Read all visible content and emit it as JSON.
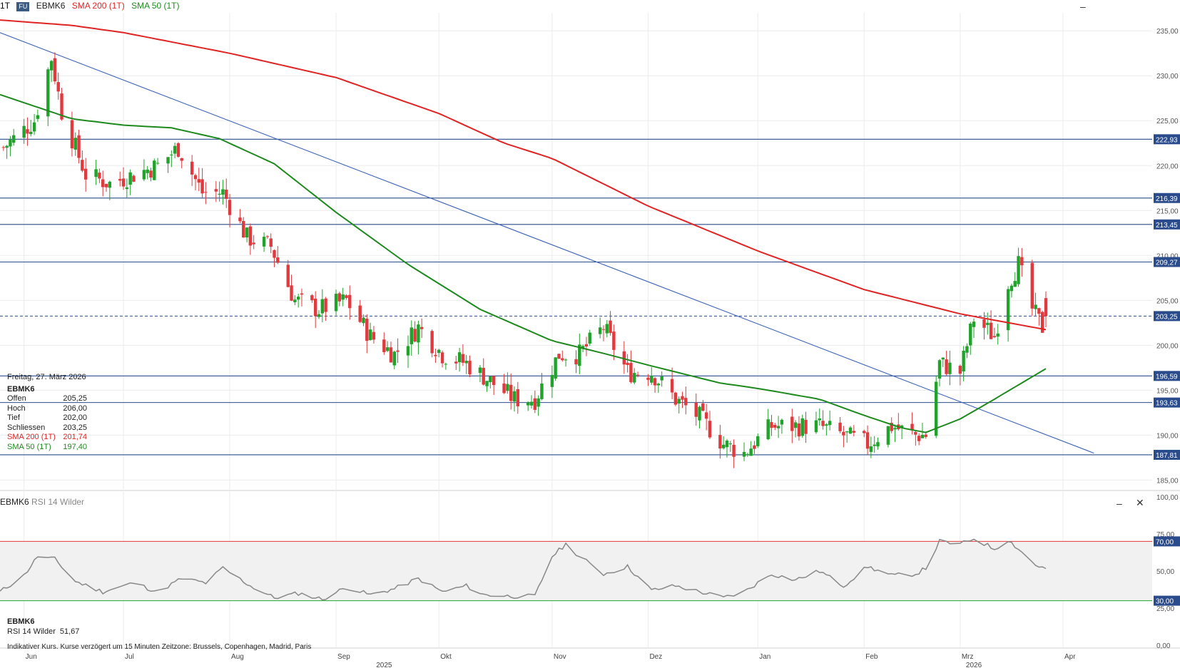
{
  "header": {
    "interval": "1T",
    "badge": "FU",
    "symbol": "EBMK6",
    "sma200_label": "SMA 200 (1T)",
    "sma50_label": "SMA 50 (1T)"
  },
  "info_box": {
    "date": "Freitag, 27. März 2026",
    "symbol": "EBMK6",
    "rows": [
      {
        "label": "Offen",
        "value": "205,25"
      },
      {
        "label": "Hoch",
        "value": "206,00"
      },
      {
        "label": "Tief",
        "value": "202,00"
      },
      {
        "label": "Schliessen",
        "value": "203,25"
      },
      {
        "label": "SMA 200 (1T)",
        "value": "201,74"
      },
      {
        "label": "SMA 50 (1T)",
        "value": "197,40"
      }
    ]
  },
  "rsi_panel": {
    "title_symbol": "EBMK6",
    "title_indicator": "RSI 14 Wilder",
    "info_symbol": "EBMK6",
    "info_label": "RSI 14 Wilder",
    "info_value": "51,67"
  },
  "footer_text": "Indikativer Kurs. Kurse verzögert um 15 Minuten   Zeitzone: Brussels, Copenhagen, Madrid, Paris",
  "colors": {
    "up": "#1fa32a",
    "down": "#e0393e",
    "sma200": "#e02424",
    "sma50": "#1e8a1e",
    "hline": "#2b4c8c",
    "trendline": "#3a62b5",
    "rsi_line": "#888888",
    "rsi_upper": "#e0393e",
    "rsi_lower": "#1fa32a",
    "price_tag": "#2b4c8c"
  },
  "chart_data": [
    {
      "type": "candlestick",
      "y_ticks": [
        "235,00",
        "230,00",
        "225,00",
        "220,00",
        "215,00",
        "210,00",
        "205,00",
        "200,00",
        "195,00",
        "190,00",
        "185,00"
      ],
      "ylim": [
        184,
        237
      ],
      "x_ticks": [
        {
          "label": "Jun",
          "date": "2025-06-02"
        },
        {
          "label": "Jul",
          "date": "2025-07-01"
        },
        {
          "label": "Aug",
          "date": "2025-08-01"
        },
        {
          "label": "Sep",
          "date": "2025-09-01"
        },
        {
          "label": "Okt",
          "date": "2025-10-01"
        },
        {
          "label": "Nov",
          "date": "2025-11-03"
        },
        {
          "label": "Dez",
          "date": "2025-12-01"
        },
        {
          "label": "Jan",
          "date": "2026-01-02"
        },
        {
          "label": "Feb",
          "date": "2026-02-02"
        },
        {
          "label": "Mrz",
          "date": "2026-03-02"
        },
        {
          "label": "Apr",
          "date": "2026-04-01"
        }
      ],
      "year_labels": [
        {
          "label": "2025",
          "date": "2025-09-15"
        },
        {
          "label": "2026",
          "date": "2026-03-06"
        }
      ],
      "horizontal_levels": [
        {
          "value": 222.93,
          "label": "222,93"
        },
        {
          "value": 216.39,
          "label": "216,39"
        },
        {
          "value": 213.45,
          "label": "213,45"
        },
        {
          "value": 209.27,
          "label": "209,27"
        },
        {
          "value": 196.59,
          "label": "196,59"
        },
        {
          "value": 193.63,
          "label": "193,63"
        },
        {
          "value": 187.81,
          "label": "187,81"
        }
      ],
      "last_price": {
        "value": 203.25,
        "label": "203,25"
      },
      "trendline": [
        {
          "date": "2025-05-26",
          "value": 234.8
        },
        {
          "date": "2026-04-10",
          "value": 188.0
        }
      ],
      "ohlc_anchors": [
        {
          "date": "2025-05-27",
          "close": 222
        },
        {
          "date": "2025-06-05",
          "close": 225
        },
        {
          "date": "2025-06-10",
          "close": 232
        },
        {
          "date": "2025-06-13",
          "close": 226
        },
        {
          "date": "2025-06-20",
          "close": 219
        },
        {
          "date": "2025-06-27",
          "close": 218
        },
        {
          "date": "2025-07-04",
          "close": 219
        },
        {
          "date": "2025-07-11",
          "close": 220
        },
        {
          "date": "2025-07-17",
          "close": 222
        },
        {
          "date": "2025-07-24",
          "close": 217
        },
        {
          "date": "2025-07-30",
          "close": 217
        },
        {
          "date": "2025-08-06",
          "close": 212
        },
        {
          "date": "2025-08-13",
          "close": 211
        },
        {
          "date": "2025-08-20",
          "close": 205
        },
        {
          "date": "2025-08-27",
          "close": 204
        },
        {
          "date": "2025-09-04",
          "close": 205
        },
        {
          "date": "2025-09-11",
          "close": 201
        },
        {
          "date": "2025-09-18",
          "close": 199
        },
        {
          "date": "2025-09-25",
          "close": 202
        },
        {
          "date": "2025-10-02",
          "close": 199
        },
        {
          "date": "2025-10-09",
          "close": 198
        },
        {
          "date": "2025-10-16",
          "close": 196
        },
        {
          "date": "2025-10-23",
          "close": 194
        },
        {
          "date": "2025-10-29",
          "close": 194
        },
        {
          "date": "2025-11-05",
          "close": 199
        },
        {
          "date": "2025-11-11",
          "close": 199
        },
        {
          "date": "2025-11-18",
          "close": 202
        },
        {
          "date": "2025-11-25",
          "close": 197
        },
        {
          "date": "2025-12-02",
          "close": 197
        },
        {
          "date": "2025-12-09",
          "close": 194
        },
        {
          "date": "2025-12-16",
          "close": 192
        },
        {
          "date": "2025-12-23",
          "close": 189
        },
        {
          "date": "2025-12-29",
          "close": 188
        },
        {
          "date": "2026-01-06",
          "close": 191
        },
        {
          "date": "2026-01-13",
          "close": 191
        },
        {
          "date": "2026-01-20",
          "close": 191
        },
        {
          "date": "2026-01-27",
          "close": 190
        },
        {
          "date": "2026-02-03",
          "close": 189
        },
        {
          "date": "2026-02-10",
          "close": 191
        },
        {
          "date": "2026-02-17",
          "close": 190
        },
        {
          "date": "2026-02-20",
          "close": 190
        },
        {
          "date": "2026-02-24",
          "close": 198
        },
        {
          "date": "2026-03-02",
          "close": 197
        },
        {
          "date": "2026-03-06",
          "close": 203
        },
        {
          "date": "2026-03-12",
          "close": 201
        },
        {
          "date": "2026-03-16",
          "close": 207
        },
        {
          "date": "2026-03-19",
          "close": 209
        },
        {
          "date": "2026-03-23",
          "close": 204
        },
        {
          "date": "2026-03-26",
          "close": 202
        },
        {
          "date": "2026-03-27",
          "close": 203.25
        }
      ],
      "sma200_anchors": [
        {
          "date": "2025-05-26",
          "value": 236.2
        },
        {
          "date": "2025-06-16",
          "value": 235.6
        },
        {
          "date": "2025-07-01",
          "value": 234.8
        },
        {
          "date": "2025-08-01",
          "value": 232.5
        },
        {
          "date": "2025-09-01",
          "value": 229.8
        },
        {
          "date": "2025-10-01",
          "value": 225.8
        },
        {
          "date": "2025-10-20",
          "value": 222.5
        },
        {
          "date": "2025-11-03",
          "value": 220.8
        },
        {
          "date": "2025-12-01",
          "value": 215.5
        },
        {
          "date": "2026-01-02",
          "value": 210.5
        },
        {
          "date": "2026-01-20",
          "value": 208.0
        },
        {
          "date": "2026-02-02",
          "value": 206.2
        },
        {
          "date": "2026-03-02",
          "value": 203.5
        },
        {
          "date": "2026-03-27",
          "value": 201.74
        }
      ],
      "sma50_anchors": [
        {
          "date": "2025-05-26",
          "value": 227.9
        },
        {
          "date": "2025-06-16",
          "value": 225.2
        },
        {
          "date": "2025-07-01",
          "value": 224.5
        },
        {
          "date": "2025-07-15",
          "value": 224.2
        },
        {
          "date": "2025-07-29",
          "value": 223.0
        },
        {
          "date": "2025-08-14",
          "value": 220.2
        },
        {
          "date": "2025-09-01",
          "value": 214.8
        },
        {
          "date": "2025-09-22",
          "value": 209.0
        },
        {
          "date": "2025-10-13",
          "value": 204.0
        },
        {
          "date": "2025-11-03",
          "value": 200.5
        },
        {
          "date": "2025-11-17",
          "value": 199.2
        },
        {
          "date": "2025-12-01",
          "value": 197.8
        },
        {
          "date": "2025-12-22",
          "value": 195.8
        },
        {
          "date": "2026-01-02",
          "value": 195.2
        },
        {
          "date": "2026-01-20",
          "value": 194.0
        },
        {
          "date": "2026-02-02",
          "value": 192.2
        },
        {
          "date": "2026-02-13",
          "value": 190.8
        },
        {
          "date": "2026-02-20",
          "value": 190.3
        },
        {
          "date": "2026-03-02",
          "value": 191.8
        },
        {
          "date": "2026-03-12",
          "value": 194.0
        },
        {
          "date": "2026-03-27",
          "value": 197.4
        }
      ]
    },
    {
      "type": "line",
      "name": "RSI 14 Wilder",
      "y_ticks": [
        "100,00",
        "75,00",
        "50,00",
        "25,00",
        "0,00"
      ],
      "ylim": [
        0,
        100
      ],
      "bands": [
        {
          "value": 70,
          "label": "70,00"
        },
        {
          "value": 30,
          "label": "30,00"
        }
      ],
      "rsi_anchors": [
        {
          "date": "2025-05-26",
          "value": 36
        },
        {
          "date": "2025-06-02",
          "value": 47
        },
        {
          "date": "2025-06-06",
          "value": 60
        },
        {
          "date": "2025-06-11",
          "value": 58
        },
        {
          "date": "2025-06-17",
          "value": 43
        },
        {
          "date": "2025-06-25",
          "value": 36
        },
        {
          "date": "2025-07-04",
          "value": 42
        },
        {
          "date": "2025-07-11",
          "value": 36
        },
        {
          "date": "2025-07-18",
          "value": 45
        },
        {
          "date": "2025-07-25",
          "value": 42
        },
        {
          "date": "2025-07-30",
          "value": 52
        },
        {
          "date": "2025-08-07",
          "value": 40
        },
        {
          "date": "2025-08-14",
          "value": 32
        },
        {
          "date": "2025-08-21",
          "value": 35
        },
        {
          "date": "2025-08-28",
          "value": 31
        },
        {
          "date": "2025-09-04",
          "value": 39
        },
        {
          "date": "2025-09-11",
          "value": 34
        },
        {
          "date": "2025-09-18",
          "value": 38
        },
        {
          "date": "2025-09-25",
          "value": 45
        },
        {
          "date": "2025-10-02",
          "value": 36
        },
        {
          "date": "2025-10-09",
          "value": 40
        },
        {
          "date": "2025-10-14",
          "value": 34
        },
        {
          "date": "2025-10-22",
          "value": 33
        },
        {
          "date": "2025-10-29",
          "value": 33
        },
        {
          "date": "2025-11-03",
          "value": 60
        },
        {
          "date": "2025-11-07",
          "value": 68
        },
        {
          "date": "2025-11-11",
          "value": 60
        },
        {
          "date": "2025-11-18",
          "value": 48
        },
        {
          "date": "2025-11-25",
          "value": 53
        },
        {
          "date": "2025-12-02",
          "value": 37
        },
        {
          "date": "2025-12-09",
          "value": 40
        },
        {
          "date": "2025-12-16",
          "value": 36
        },
        {
          "date": "2025-12-23",
          "value": 32
        },
        {
          "date": "2025-12-29",
          "value": 36
        },
        {
          "date": "2026-01-06",
          "value": 48
        },
        {
          "date": "2026-01-13",
          "value": 44
        },
        {
          "date": "2026-01-20",
          "value": 50
        },
        {
          "date": "2026-01-27",
          "value": 40
        },
        {
          "date": "2026-02-03",
          "value": 53
        },
        {
          "date": "2026-02-10",
          "value": 47
        },
        {
          "date": "2026-02-17",
          "value": 48
        },
        {
          "date": "2026-02-20",
          "value": 52
        },
        {
          "date": "2026-02-24",
          "value": 70
        },
        {
          "date": "2026-03-02",
          "value": 68
        },
        {
          "date": "2026-03-06",
          "value": 72
        },
        {
          "date": "2026-03-12",
          "value": 65
        },
        {
          "date": "2026-03-16",
          "value": 71
        },
        {
          "date": "2026-03-19",
          "value": 65
        },
        {
          "date": "2026-03-24",
          "value": 54
        },
        {
          "date": "2026-03-27",
          "value": 51.67
        }
      ]
    }
  ]
}
